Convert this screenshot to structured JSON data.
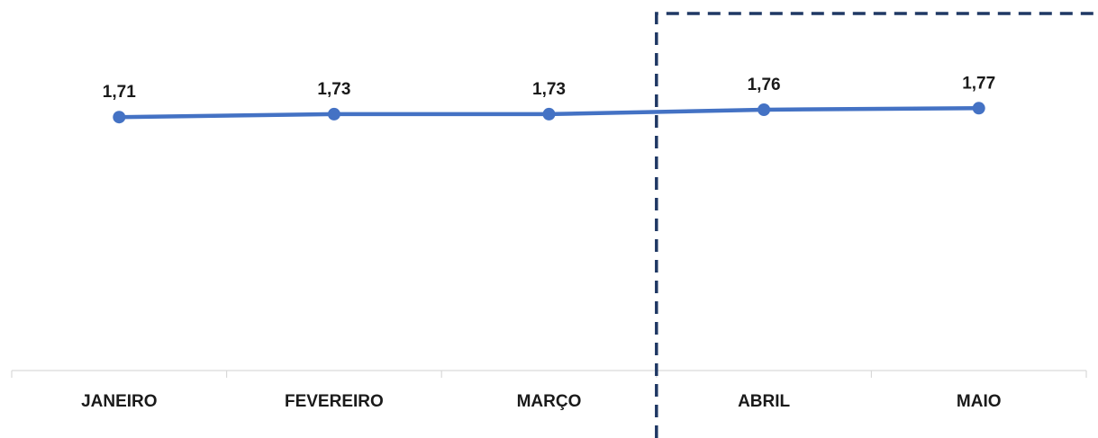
{
  "chart_data": {
    "type": "line",
    "categories": [
      "JANEIRO",
      "FEVEREIRO",
      "MARÇO",
      "ABRIL",
      "MAIO"
    ],
    "series": [
      {
        "values": [
          1.71,
          1.73,
          1.73,
          1.76,
          1.77
        ],
        "value_labels": [
          "1,71",
          "1,73",
          "1,73",
          "1,76",
          "1,77"
        ],
        "color": "#4472C4"
      }
    ],
    "title": "",
    "xlabel": "",
    "ylabel": "",
    "ylim": [
      0,
      2.5
    ],
    "grid": false,
    "legend": "none",
    "highlight_box": {
      "start_between_categories": [
        "MARÇO",
        "ABRIL"
      ],
      "style": "dashed",
      "color": "#1F3864"
    },
    "axis_line_color": "#D9D9D9"
  }
}
